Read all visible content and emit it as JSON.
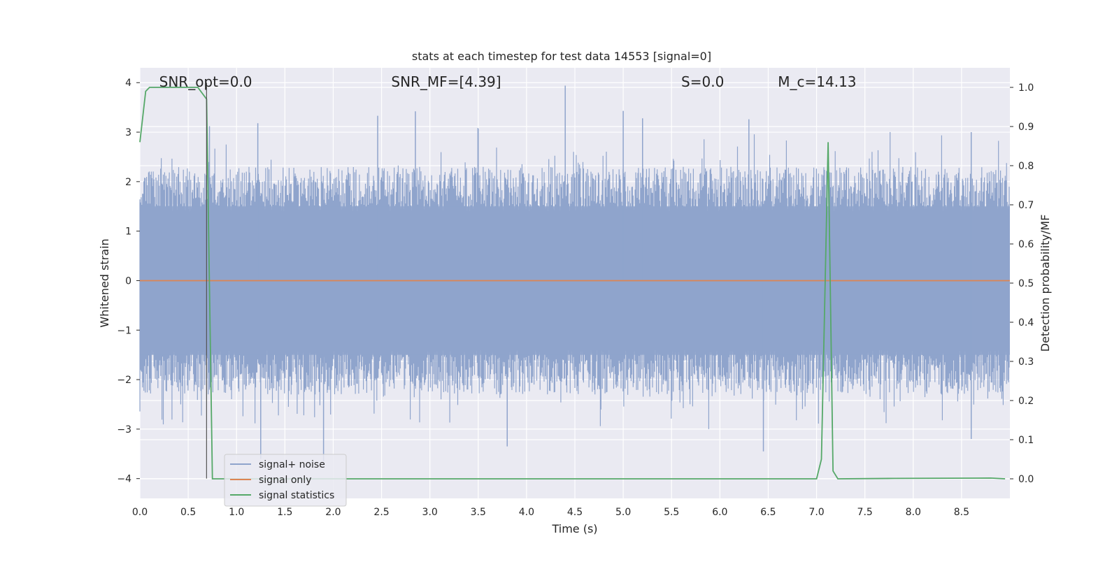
{
  "chart_data": {
    "type": "line",
    "title": "stats at each timestep for test data 14553 [signal=0]",
    "xlabel": "Time (s)",
    "ylabel_left": "Whitened strain",
    "ylabel_right": "Detection probability/MF",
    "xlim": [
      0.0,
      9.0
    ],
    "ylim_left": [
      -4.4,
      4.3
    ],
    "ylim_right": [
      -0.05,
      1.05
    ],
    "x_ticks": [
      "0.0",
      "0.5",
      "1.0",
      "1.5",
      "2.0",
      "2.5",
      "3.0",
      "3.5",
      "4.0",
      "4.5",
      "5.0",
      "5.5",
      "6.0",
      "6.5",
      "7.0",
      "7.5",
      "8.0",
      "8.5"
    ],
    "y_ticks_left": [
      "4",
      "3",
      "2",
      "1",
      "0",
      "−1",
      "−2",
      "−3",
      "−4"
    ],
    "y_ticks_right": [
      "1.0",
      "0.9",
      "0.8",
      "0.7",
      "0.6",
      "0.5",
      "0.4",
      "0.3",
      "0.2",
      "0.1",
      "0.0"
    ],
    "grid": true,
    "annotations": [
      {
        "text": "SNR_opt=0.0",
        "x": 0.2
      },
      {
        "text": "SNR_MF=[4.39]",
        "x": 2.6
      },
      {
        "text": "S=0.0",
        "x": 5.6
      },
      {
        "text": "M_c=14.13",
        "x": 6.6
      }
    ],
    "vertical_marker_x": 0.69,
    "series": [
      {
        "name": "signal+ noise",
        "color": "#8fa4cc",
        "axis": "left",
        "note": "noise band roughly within ±2 with peaks up to ±4",
        "peaks": [
          {
            "x": 0.72,
            "y": 3.12
          },
          {
            "x": 1.22,
            "y": 3.18
          },
          {
            "x": 2.46,
            "y": 3.33
          },
          {
            "x": 2.85,
            "y": 3.42
          },
          {
            "x": 3.5,
            "y": 3.07
          },
          {
            "x": 4.4,
            "y": 3.94
          },
          {
            "x": 5.0,
            "y": 3.43
          },
          {
            "x": 5.2,
            "y": 3.28
          },
          {
            "x": 6.3,
            "y": 3.26
          },
          {
            "x": 8.6,
            "y": 3.0
          },
          {
            "x": 1.25,
            "y": -3.6
          },
          {
            "x": 1.9,
            "y": -3.65
          },
          {
            "x": 3.8,
            "y": -3.35
          },
          {
            "x": 6.45,
            "y": -3.45
          },
          {
            "x": 8.6,
            "y": -3.2
          }
        ]
      },
      {
        "name": "signal only",
        "color": "#dd8452",
        "axis": "left",
        "x": [
          0.0,
          9.0
        ],
        "y": [
          0.0,
          0.0
        ]
      },
      {
        "name": "signal statistics",
        "color": "#55a868",
        "axis": "right",
        "x": [
          0.0,
          0.06,
          0.1,
          0.2,
          0.3,
          0.4,
          0.5,
          0.6,
          0.69,
          0.75,
          0.85,
          7.0,
          7.05,
          7.12,
          7.17,
          7.22,
          7.8,
          8.8,
          8.95
        ],
        "y": [
          0.86,
          0.99,
          1.0,
          1.0,
          1.0,
          1.0,
          1.0,
          1.0,
          0.97,
          0.0,
          0.0,
          0.0,
          0.05,
          0.86,
          0.02,
          0.0,
          0.001,
          0.002,
          0.0
        ]
      }
    ],
    "legend": {
      "placement": "lower-left",
      "entries": [
        "signal+ noise",
        "signal only",
        "signal statistics"
      ]
    }
  }
}
